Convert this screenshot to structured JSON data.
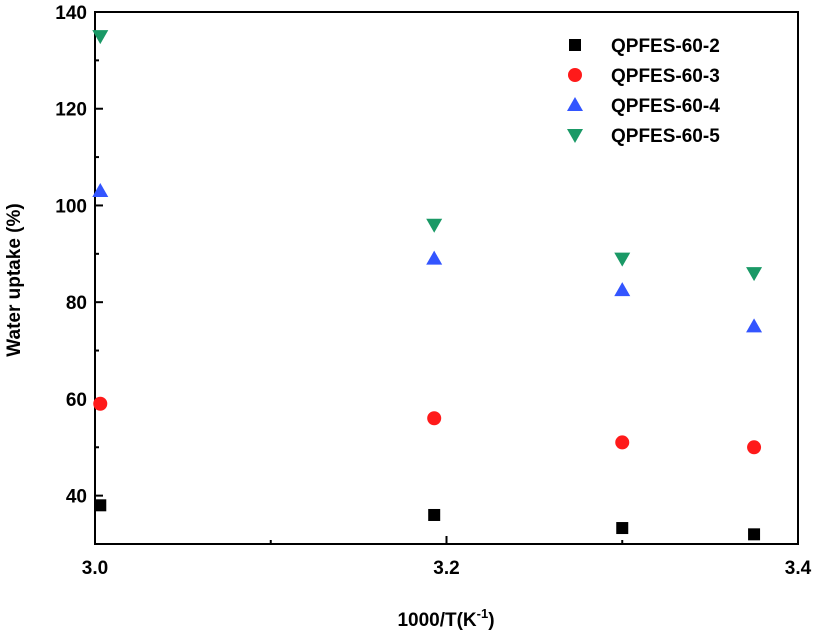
{
  "chart_data": {
    "type": "scatter",
    "xlabel_main": "1000/T(K",
    "xlabel_sup": "-1",
    "xlabel_end": ")",
    "ylabel": "Water uptake (%)",
    "xlim": [
      3.0,
      3.4
    ],
    "ylim": [
      30,
      140
    ],
    "xticks": [
      "3.0",
      "3.2",
      "3.4"
    ],
    "yticks": [
      "40",
      "60",
      "80",
      "100",
      "120",
      "140"
    ],
    "legend_position": "top-right",
    "grid": false,
    "x": [
      3.003,
      3.193,
      3.3,
      3.375
    ],
    "series": [
      {
        "name": "QPFES-60-2",
        "marker": "square",
        "color": "#000000",
        "values": [
          38.0,
          36.0,
          33.3,
          32.0
        ]
      },
      {
        "name": "QPFES-60-3",
        "marker": "circle",
        "color": "#ff1a1a",
        "values": [
          59.0,
          56.0,
          51.0,
          50.0
        ]
      },
      {
        "name": "QPFES-60-4",
        "marker": "triangle-up",
        "color": "#3355ff",
        "values": [
          103.0,
          89.0,
          82.5,
          75.0
        ]
      },
      {
        "name": "QPFES-60-5",
        "marker": "triangle-down",
        "color": "#1a9966",
        "values": [
          135.0,
          96.0,
          89.0,
          86.0
        ]
      }
    ]
  }
}
